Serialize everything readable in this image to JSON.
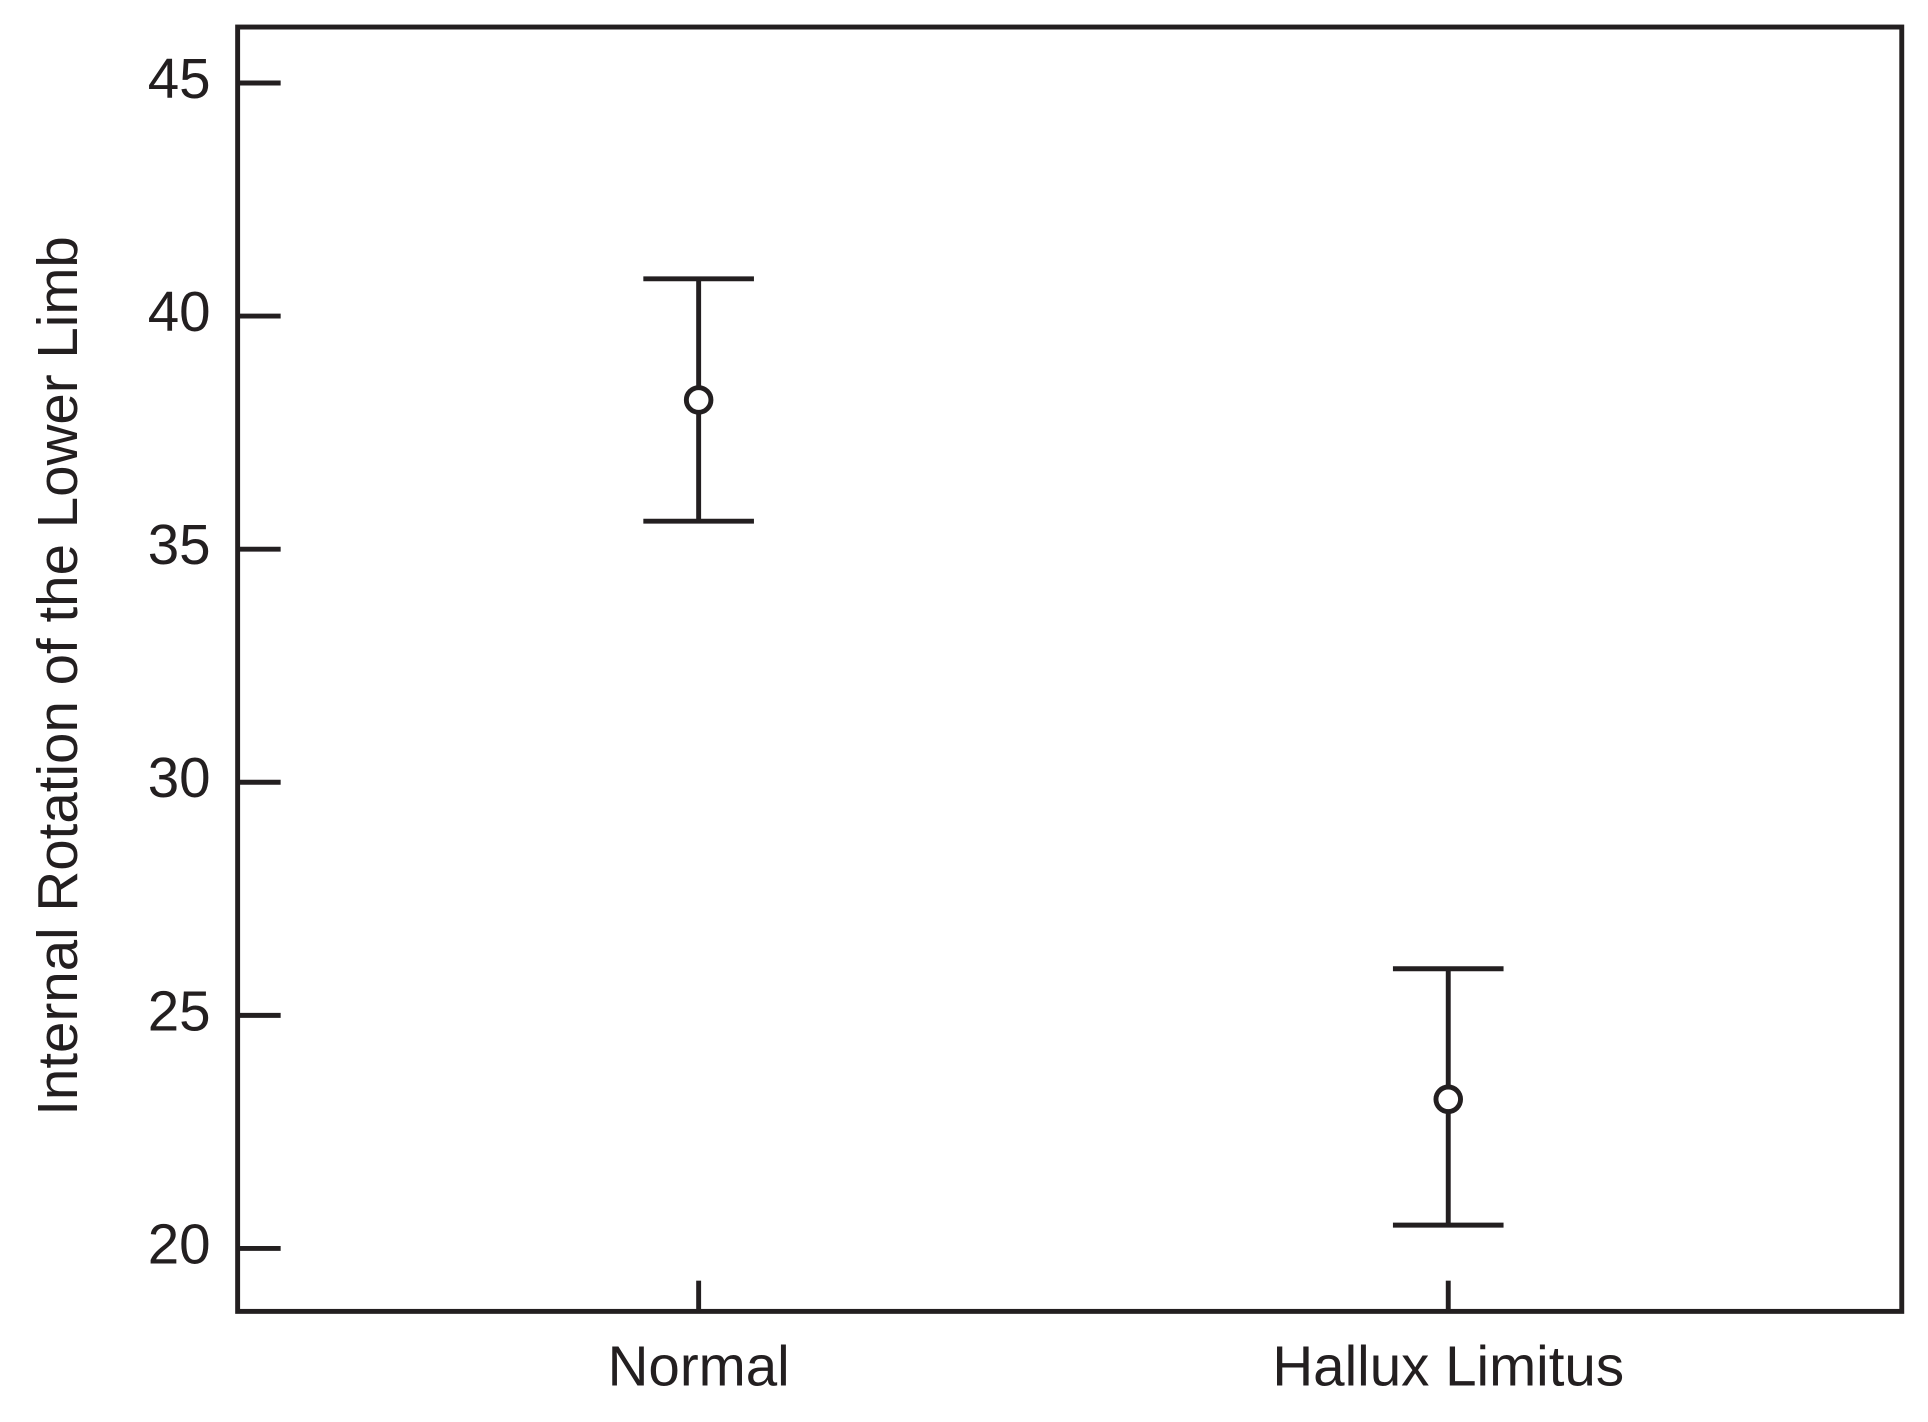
{
  "chart_data": {
    "type": "errorbar",
    "y_label": "Internal Rotation of the Lower Limb",
    "categories": [
      "Normal",
      "Hallux Limitus"
    ],
    "series": [
      {
        "color": "#231f20",
        "values": [
          38.2,
          23.2
        ],
        "lower": [
          35.6,
          20.5
        ],
        "upper": [
          40.8,
          26.0
        ]
      }
    ],
    "ylim": [
      18.65,
      46.2
    ],
    "yticks": [
      20,
      25,
      30,
      35,
      40,
      45
    ]
  }
}
